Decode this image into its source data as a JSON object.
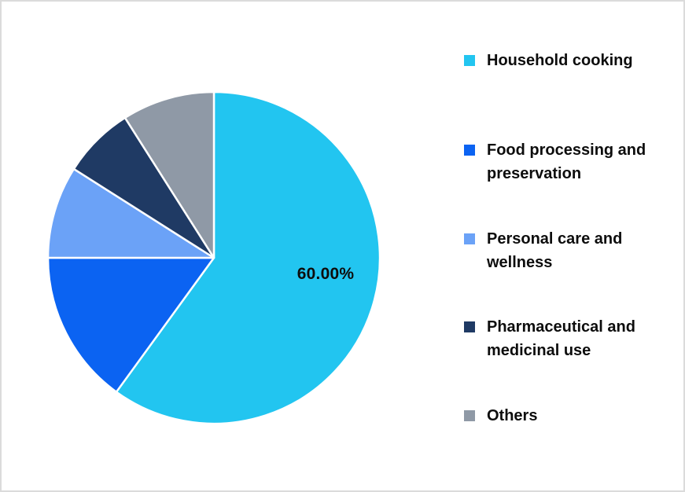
{
  "chart_data": {
    "type": "pie",
    "title": "",
    "legend_position": "right",
    "start_angle_deg": 0,
    "direction": "clockwise",
    "data_label": {
      "text": "60.00%",
      "slice": "Household cooking"
    },
    "slices": [
      {
        "label": "Household cooking",
        "legend_lines": [
          "Household cooking"
        ],
        "value": 60,
        "percent_label": "60.00%",
        "color": "#22C5F0"
      },
      {
        "label": "Food processing and preservation",
        "legend_lines": [
          "Food processing and",
          "preservation"
        ],
        "value": 15,
        "color": "#0B63F2"
      },
      {
        "label": "Personal care and wellness",
        "legend_lines": [
          "Personal care and",
          "wellness"
        ],
        "value": 9,
        "color": "#6BA2F7"
      },
      {
        "label": "Pharmaceutical and medicinal use",
        "legend_lines": [
          "Pharmaceutical and",
          "medicinal use"
        ],
        "value": 7,
        "color": "#1F3A64"
      },
      {
        "label": "Others",
        "legend_lines": [
          "Others"
        ],
        "value": 9,
        "color": "#8F99A6"
      }
    ],
    "colors": {
      "slice_border": "#FFFFFF",
      "label_text": "#0D0D0D",
      "canvas_border": "#DBDBDB",
      "background": "#FFFFFF"
    }
  }
}
